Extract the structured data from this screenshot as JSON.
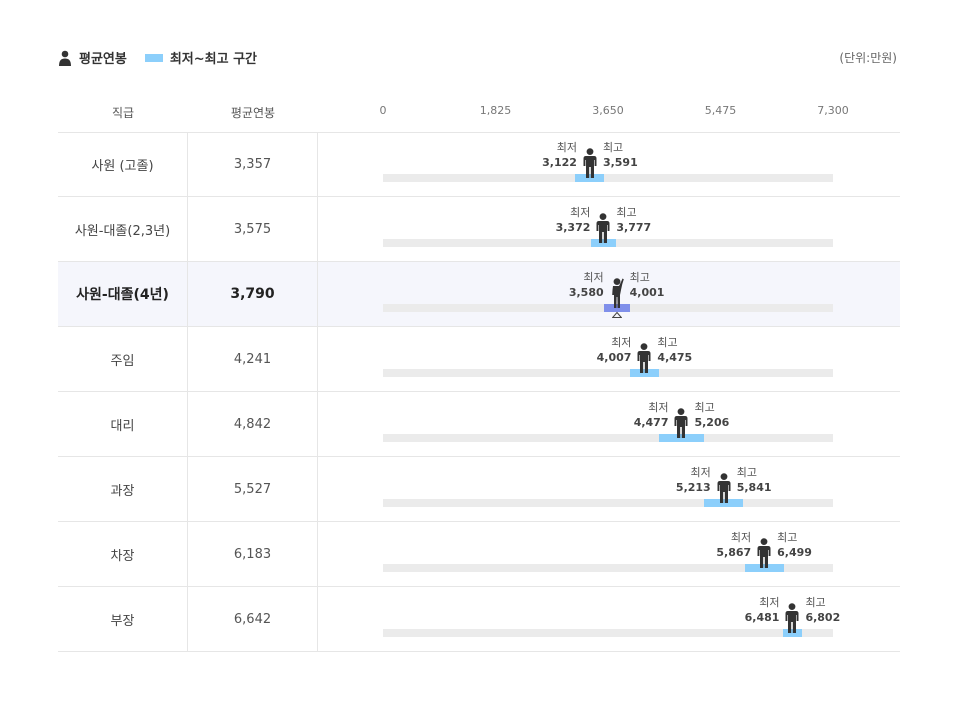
{
  "legend": {
    "avg_label": "평균연봉",
    "range_label": "최저~최고 구간"
  },
  "unit": "(단위:만원)",
  "table": {
    "col_grade": "직급",
    "col_avg": "평균연봉"
  },
  "labels": {
    "min": "최저",
    "max": "최고"
  },
  "colors": {
    "range": "#8ccffb",
    "range_highlight": "#7f8fea",
    "track": "#ebebeb",
    "person": "#333333",
    "highlight_row": "#f5f6fc"
  },
  "chart_data": {
    "type": "range-bar",
    "xlim": [
      0,
      7300
    ],
    "ticks": [
      "0",
      "1,825",
      "3,650",
      "5,475",
      "7,300"
    ],
    "tick_values": [
      0,
      1825,
      3650,
      5475,
      7300
    ],
    "highlight_index": 2,
    "rows": [
      {
        "grade": "사원 (고졸)",
        "avg": 3357,
        "avg_text": "3,357",
        "min": 3122,
        "min_text": "3,122",
        "max": 3591,
        "max_text": "3,591"
      },
      {
        "grade": "사원-대졸(2,3년)",
        "avg": 3575,
        "avg_text": "3,575",
        "min": 3372,
        "min_text": "3,372",
        "max": 3777,
        "max_text": "3,777"
      },
      {
        "grade": "사원-대졸(4년)",
        "avg": 3790,
        "avg_text": "3,790",
        "min": 3580,
        "min_text": "3,580",
        "max": 4001,
        "max_text": "4,001"
      },
      {
        "grade": "주임",
        "avg": 4241,
        "avg_text": "4,241",
        "min": 4007,
        "min_text": "4,007",
        "max": 4475,
        "max_text": "4,475"
      },
      {
        "grade": "대리",
        "avg": 4842,
        "avg_text": "4,842",
        "min": 4477,
        "min_text": "4,477",
        "max": 5206,
        "max_text": "5,206"
      },
      {
        "grade": "과장",
        "avg": 5527,
        "avg_text": "5,527",
        "min": 5213,
        "min_text": "5,213",
        "max": 5841,
        "max_text": "5,841"
      },
      {
        "grade": "차장",
        "avg": 6183,
        "avg_text": "6,183",
        "min": 5867,
        "min_text": "5,867",
        "max": 6499,
        "max_text": "6,499"
      },
      {
        "grade": "부장",
        "avg": 6642,
        "avg_text": "6,642",
        "min": 6481,
        "min_text": "6,481",
        "max": 6802,
        "max_text": "6,802"
      }
    ]
  }
}
